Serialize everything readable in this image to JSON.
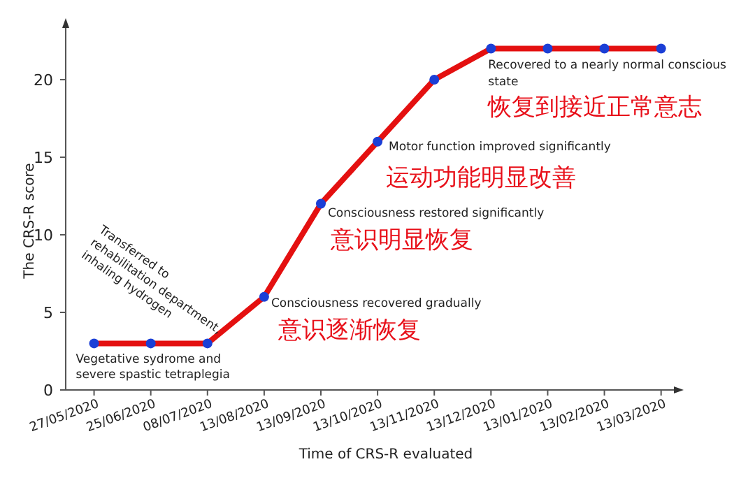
{
  "chart_data": {
    "type": "line",
    "xlabel": "Time of CRS-R evaluated",
    "ylabel": "The CRS-R score",
    "categories": [
      "27/05/2020",
      "25/06/2020",
      "08/07/2020",
      "13/08/2020",
      "13/09/2020",
      "13/10/2020",
      "13/11/2020",
      "13/12/2020",
      "13/01/2020",
      "13/02/2020",
      "13/03/2020"
    ],
    "series": [
      {
        "color": "#e41010",
        "values": [
          3,
          3,
          3,
          6,
          12,
          16,
          20,
          22,
          22,
          22,
          22
        ]
      }
    ],
    "marker": "circle",
    "line_style": "solid",
    "grid": false,
    "ylim": [
      0,
      23.6
    ],
    "yticks": [
      0,
      5,
      10,
      15,
      20
    ],
    "annotations": [
      {
        "text": "Vegetative sydrome and\nsevere spastic tetraplegia",
        "x": "27/05/2020",
        "y": 3
      },
      {
        "text": "Transferred to\nrehabilitation department,\ninhaling hydrogen",
        "x": "08/07/2020",
        "y": 3
      },
      {
        "text": "Consciousness recovered gradually",
        "x": "13/08/2020",
        "y": 6
      },
      {
        "text": "意识逐渐恢复",
        "x": "13/08/2020",
        "y": 6
      },
      {
        "text": "Consciousness restored significantly",
        "x": "13/09/2020",
        "y": 12
      },
      {
        "text": "意识明显恢复",
        "x": "13/09/2020",
        "y": 12
      },
      {
        "text": "Motor function improved significantly",
        "x": "13/10/2020",
        "y": 16
      },
      {
        "text": "运动功能明显改善",
        "x": "13/10/2020",
        "y": 16
      },
      {
        "text": "Recovered to a nearly normal conscious\nstate",
        "x": "13/12/2020",
        "y": 22
      },
      {
        "text": "恢复到接近正常意志",
        "x": "13/12/2020",
        "y": 22
      }
    ]
  }
}
